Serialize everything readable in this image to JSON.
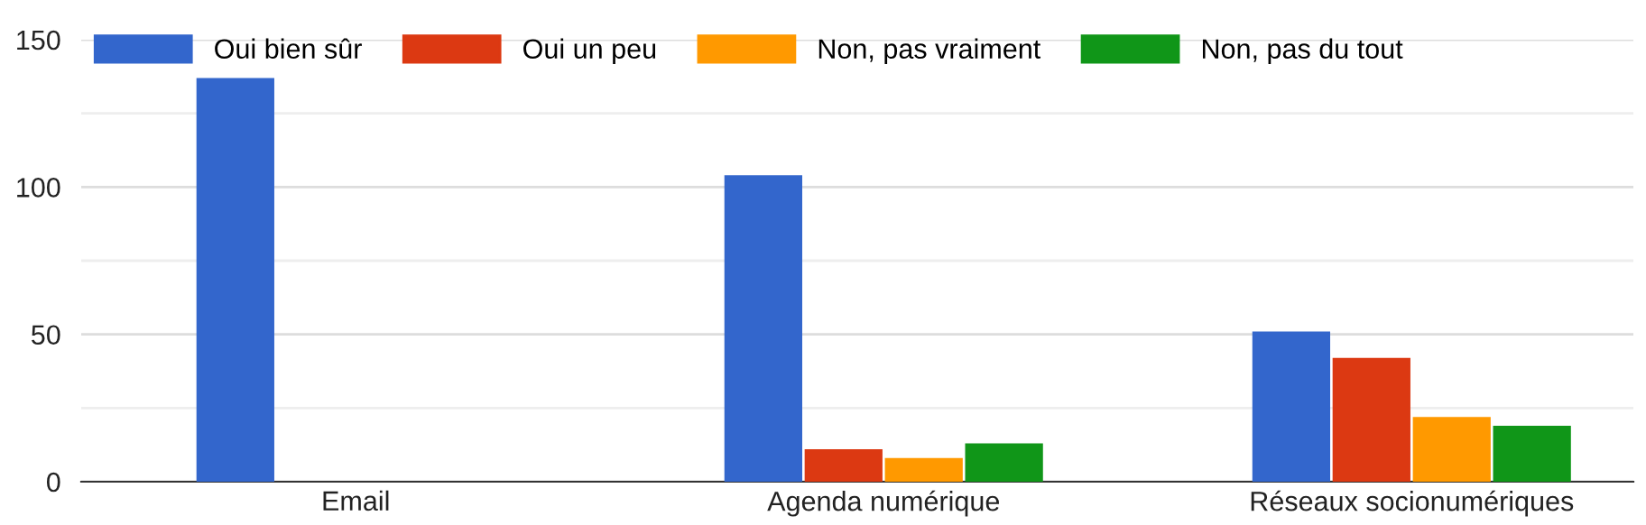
{
  "chart_data": {
    "type": "bar",
    "categories": [
      "Email",
      "Agenda numérique",
      "Réseaux socionumériques"
    ],
    "series": [
      {
        "name": "Oui bien sûr",
        "color": "#3366cc",
        "values": [
          137,
          104,
          51
        ]
      },
      {
        "name": "Oui un peu",
        "color": "#dc3912",
        "values": [
          0,
          11,
          42
        ]
      },
      {
        "name": "Non, pas vraiment",
        "color": "#ff9900",
        "values": [
          0,
          8,
          22
        ]
      },
      {
        "name": "Non, pas du tout",
        "color": "#109618",
        "values": [
          0,
          13,
          19
        ]
      }
    ],
    "ylim": [
      0,
      150
    ],
    "yticks": [
      0,
      {
        "value": 25,
        "label": null
      },
      50,
      {
        "value": 75,
        "label": null
      },
      100,
      {
        "value": 125,
        "label": null
      },
      150
    ],
    "grid": "y",
    "legend": "top left"
  }
}
